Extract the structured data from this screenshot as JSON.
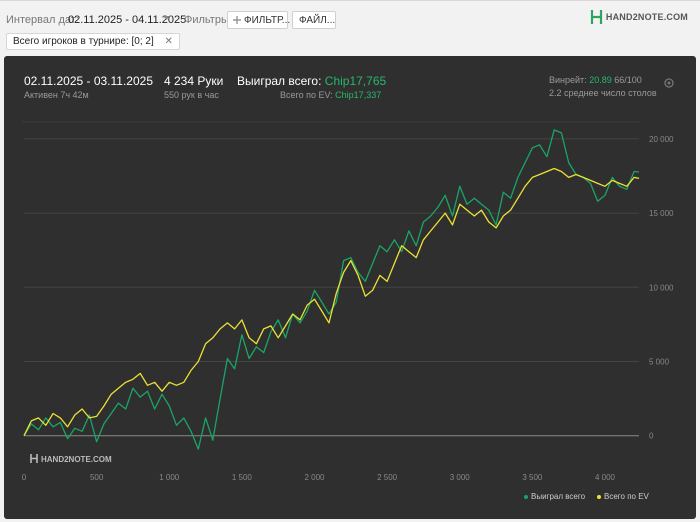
{
  "toolbar": {
    "date_label": "Интервал дат:",
    "date_value": "02.11.2025 - 04.11.2025",
    "filters_label": "Фильтры:",
    "filter_button": "ФИЛЬТР...",
    "file_button": "ФАЙЛ...",
    "logo_text": "HAND2NOTE.COM",
    "chip_text": "Всего игроков в турнире: [0; 2]"
  },
  "summary": {
    "date_range": "02.11.2025 - 03.11.2025",
    "active": "Активен 7ч 42м",
    "hands": "4 234 Руки",
    "per_hour": "550 рук в час",
    "won_label": "Выиграл всего:",
    "won_value": "Chip17,765",
    "ev_label": "Всего по EV:",
    "ev_value": "Chip17,337",
    "winrate_label": "Винрейт:",
    "winrate_value": "20.89",
    "winrate_suffix": "66/100",
    "tables": "2.2 среднее число столов"
  },
  "watermark": "HAND2NOTE.COM",
  "colors": {
    "won": "#1aa566",
    "ev": "#ece134",
    "panel": "#2f2f2f"
  },
  "chart_data": {
    "type": "line",
    "x_ticks": [
      "0",
      "500",
      "1 000",
      "1 500",
      "2 000",
      "2 500",
      "3 000",
      "3 500",
      "4 000"
    ],
    "y_ticks": [
      "0",
      "5 000",
      "10 000",
      "15 000",
      "20 000"
    ],
    "xlim": [
      0,
      4234
    ],
    "ylim": [
      -1500,
      21000
    ],
    "series": [
      {
        "name": "Выиграл всего",
        "color": "#1aa566",
        "x": [
          0,
          50,
          100,
          150,
          200,
          250,
          300,
          350,
          400,
          450,
          500,
          550,
          600,
          650,
          700,
          750,
          800,
          850,
          900,
          950,
          1000,
          1050,
          1100,
          1150,
          1200,
          1250,
          1300,
          1350,
          1400,
          1450,
          1500,
          1550,
          1600,
          1650,
          1700,
          1750,
          1800,
          1850,
          1900,
          1950,
          2000,
          2050,
          2100,
          2150,
          2200,
          2250,
          2300,
          2350,
          2400,
          2450,
          2500,
          2550,
          2600,
          2650,
          2700,
          2750,
          2800,
          2850,
          2900,
          2950,
          3000,
          3050,
          3100,
          3150,
          3200,
          3250,
          3300,
          3350,
          3400,
          3450,
          3500,
          3550,
          3600,
          3650,
          3700,
          3750,
          3800,
          3850,
          3900,
          3950,
          4000,
          4050,
          4100,
          4150,
          4200,
          4234
        ],
        "y": [
          0,
          800,
          400,
          1200,
          600,
          900,
          -200,
          500,
          300,
          1400,
          -400,
          800,
          1500,
          2200,
          1800,
          3200,
          2600,
          3000,
          1800,
          2800,
          2000,
          700,
          1200,
          300,
          -900,
          1200,
          -300,
          2500,
          5200,
          4500,
          6800,
          5200,
          6000,
          5600,
          7000,
          7800,
          6600,
          8200,
          7600,
          8400,
          9800,
          9000,
          8200,
          9000,
          11800,
          12000,
          11000,
          10400,
          11600,
          12800,
          12400,
          13200,
          12400,
          13800,
          12800,
          14400,
          14800,
          15400,
          16200,
          14800,
          16800,
          15600,
          16000,
          15600,
          15200,
          14200,
          16400,
          16000,
          17400,
          18400,
          19400,
          19600,
          18800,
          20600,
          20400,
          18400,
          17600,
          17400,
          17000,
          15800,
          16200,
          17400,
          16800,
          16600,
          17800,
          17765
        ]
      },
      {
        "name": "Всего по EV",
        "color": "#ece134",
        "x": [
          0,
          50,
          100,
          150,
          200,
          250,
          300,
          350,
          400,
          450,
          500,
          550,
          600,
          650,
          700,
          750,
          800,
          850,
          900,
          950,
          1000,
          1050,
          1100,
          1150,
          1200,
          1250,
          1300,
          1350,
          1400,
          1450,
          1500,
          1550,
          1600,
          1650,
          1700,
          1750,
          1800,
          1850,
          1900,
          1950,
          2000,
          2050,
          2100,
          2150,
          2200,
          2250,
          2300,
          2350,
          2400,
          2450,
          2500,
          2550,
          2600,
          2650,
          2700,
          2750,
          2800,
          2850,
          2900,
          2950,
          3000,
          3050,
          3100,
          3150,
          3200,
          3250,
          3300,
          3350,
          3400,
          3450,
          3500,
          3550,
          3600,
          3650,
          3700,
          3750,
          3800,
          3850,
          3900,
          3950,
          4000,
          4050,
          4100,
          4150,
          4200,
          4234
        ],
        "y": [
          0,
          1000,
          1200,
          700,
          1500,
          1200,
          600,
          1400,
          1800,
          1200,
          1300,
          2000,
          2800,
          3200,
          3600,
          3800,
          4200,
          3400,
          3600,
          3000,
          3600,
          3400,
          3600,
          4400,
          5000,
          6200,
          6600,
          7200,
          7600,
          7200,
          7800,
          6600,
          6200,
          7200,
          7400,
          6600,
          7400,
          8200,
          7800,
          8800,
          9200,
          8400,
          7600,
          9600,
          11000,
          11800,
          10800,
          9400,
          9800,
          10800,
          10400,
          11600,
          12800,
          12400,
          12000,
          13200,
          13800,
          14400,
          15000,
          14200,
          15600,
          15200,
          14800,
          15200,
          14400,
          14000,
          14800,
          15200,
          16000,
          16800,
          17400,
          17600,
          17800,
          18000,
          17800,
          17400,
          17600,
          17400,
          17200,
          17000,
          16800,
          17200,
          17000,
          16800,
          17400,
          17337
        ]
      }
    ]
  }
}
